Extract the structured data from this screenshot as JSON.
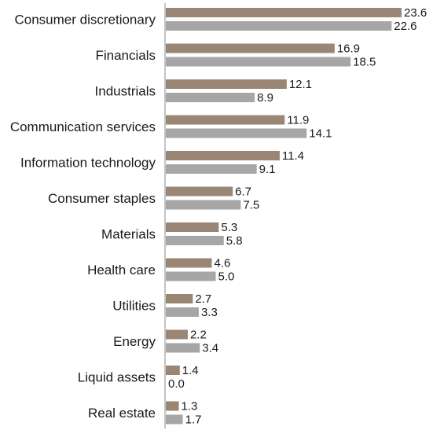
{
  "chart_data": {
    "type": "bar",
    "orientation": "horizontal",
    "categories": [
      "Consumer discretionary",
      "Financials",
      "Industrials",
      "Communication services",
      "Information technology",
      "Consumer staples",
      "Materials",
      "Health care",
      "Utilities",
      "Energy",
      "Liquid assets",
      "Real estate"
    ],
    "series": [
      {
        "values": [
          23.6,
          16.9,
          12.1,
          11.9,
          11.4,
          6.7,
          5.3,
          4.6,
          2.7,
          2.2,
          1.4,
          1.3
        ],
        "color": "#998675"
      },
      {
        "values": [
          22.6,
          18.5,
          8.9,
          14.1,
          9.1,
          7.5,
          5.8,
          5.0,
          3.3,
          3.4,
          0.0,
          1.7
        ],
        "color": "#a6a6a6"
      }
    ],
    "value_labels": [
      [
        "23.6",
        "16.9",
        "12.1",
        "11.9",
        "11.4",
        "6.7",
        "5.3",
        "4.6",
        "2.7",
        "2.2",
        "1.4",
        "1.3"
      ],
      [
        "22.6",
        "18.5",
        "8.9",
        "14.1",
        "9.1",
        "7.5",
        "5.8",
        "5.0",
        "3.3",
        "3.4",
        "0.0",
        "1.7"
      ]
    ],
    "xlim": [
      0,
      23.6
    ],
    "grid": false,
    "legend": "none",
    "axis_color": "#888888"
  }
}
